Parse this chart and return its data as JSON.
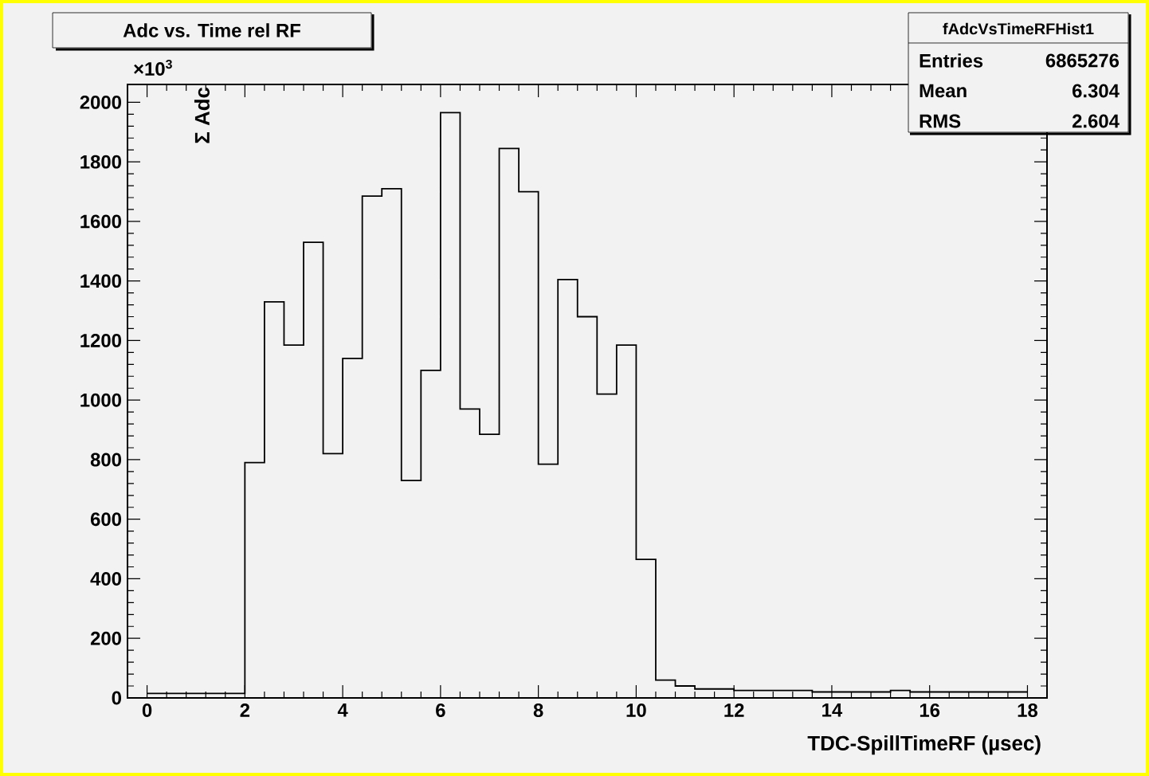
{
  "chart_data": {
    "type": "histogram",
    "title": "Adc vs. Time rel RF",
    "xlabel": "TDC-SpillTimeRF (µsec)",
    "ylabel": "Σ Adc",
    "bins": [
      0,
      0.4,
      0.8,
      1.2,
      1.6,
      2.0,
      2.4,
      2.8,
      3.2,
      3.6,
      4.0,
      4.4,
      4.8,
      5.2,
      5.6,
      6.0,
      6.4,
      6.8,
      7.2,
      7.6,
      8.0,
      8.4,
      8.8,
      9.2,
      9.6,
      10.0,
      10.4,
      10.8,
      11.2,
      11.6,
      12.0,
      12.4,
      12.8,
      13.2,
      13.6,
      14.0,
      14.4,
      14.8,
      15.2,
      15.6,
      16.0,
      16.4,
      16.8,
      17.2,
      17.6,
      18.0
    ],
    "values": [
      15,
      15,
      15,
      15,
      15,
      790,
      1330,
      1185,
      1530,
      820,
      1140,
      1685,
      1710,
      730,
      1100,
      1965,
      970,
      885,
      1845,
      1700,
      785,
      1405,
      1280,
      1020,
      1185,
      465,
      60,
      40,
      30,
      30,
      25,
      25,
      25,
      25,
      20,
      20,
      20,
      20,
      25,
      20,
      20,
      20,
      20,
      20,
      20
    ],
    "color": "#000000",
    "xlim": [
      -0.4,
      18.4
    ],
    "xticks": [
      0,
      2,
      4,
      6,
      8,
      10,
      12,
      14,
      16,
      18
    ],
    "ylim": [
      0,
      2060
    ],
    "yticks": [
      0,
      200,
      400,
      600,
      800,
      1000,
      1200,
      1400,
      1600,
      1800,
      2000
    ],
    "grid": false,
    "annotations": [
      "×10$^{3}$",
      "fAdcVsTimeRFHist1",
      "Entries",
      "6865276",
      "Mean",
      "6.304",
      "RMS",
      "2.604"
    ]
  }
}
